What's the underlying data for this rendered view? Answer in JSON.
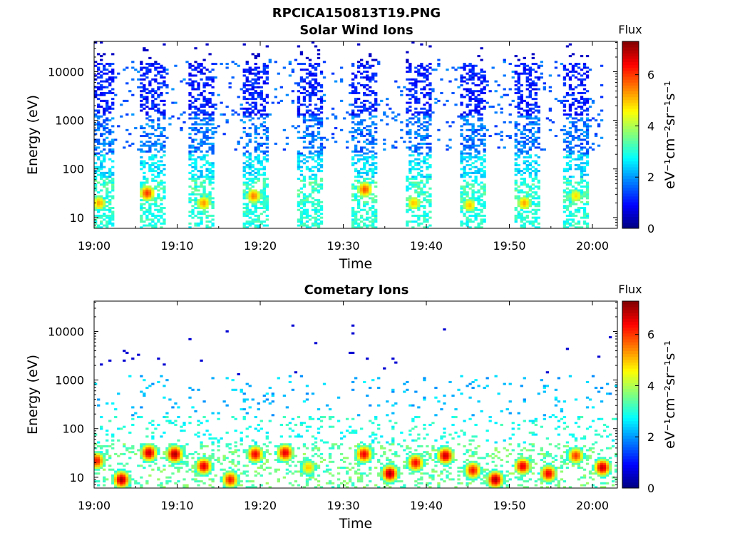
{
  "figure": {
    "title": "RPCICA150813T19.PNG"
  },
  "chart_data": [
    {
      "type": "heatmap",
      "title": "Solar Wind Ions",
      "xlabel": "Time",
      "ylabel": "Energy (eV)",
      "xlim": [
        "19:00",
        "20:03"
      ],
      "ylim": [
        6,
        42000
      ],
      "yscale": "log",
      "x_ticks": [
        "19:00",
        "19:10",
        "19:20",
        "19:30",
        "19:40",
        "19:50",
        "20:00"
      ],
      "y_ticks": [
        "10",
        "100",
        "1000",
        "10000"
      ],
      "colorbar": {
        "title": "Flux",
        "label": "eV⁻¹cm⁻²sr⁻¹s⁻¹",
        "range": [
          0,
          7.3
        ],
        "ticks": [
          "0",
          "2",
          "4",
          "6"
        ],
        "colormap": "jet"
      },
      "bursts_center_min": [
        1,
        7,
        13,
        19.5,
        26,
        32.5,
        39,
        45.5,
        52,
        58
      ],
      "hotspots": [
        {
          "t": 0.6,
          "e": 20,
          "flux": 5.2
        },
        {
          "t": 6.4,
          "e": 32,
          "flux": 6.0
        },
        {
          "t": 13.2,
          "e": 20,
          "flux": 5.3
        },
        {
          "t": 19.2,
          "e": 28,
          "flux": 5.5
        },
        {
          "t": 32.6,
          "e": 38,
          "flux": 5.8
        },
        {
          "t": 38.5,
          "e": 20,
          "flux": 5.0
        },
        {
          "t": 45.2,
          "e": 18,
          "flux": 5.0
        },
        {
          "t": 51.8,
          "e": 20,
          "flux": 5.2
        },
        {
          "t": 58.0,
          "e": 28,
          "flux": 4.8
        }
      ],
      "grid": false
    },
    {
      "type": "heatmap",
      "title": "Cometary Ions",
      "xlabel": "Time",
      "ylabel": "Energy (eV)",
      "xlim": [
        "19:00",
        "20:03"
      ],
      "ylim": [
        6,
        42000
      ],
      "yscale": "log",
      "x_ticks": [
        "19:00",
        "19:10",
        "19:20",
        "19:30",
        "19:40",
        "19:50",
        "20:00"
      ],
      "y_ticks": [
        "10",
        "100",
        "1000",
        "10000"
      ],
      "colorbar": {
        "title": "Flux",
        "label": "eV⁻¹cm⁻²sr⁻¹s⁻¹",
        "range": [
          0,
          7.3
        ],
        "ticks": [
          "0",
          "2",
          "4",
          "6"
        ],
        "colormap": "jet"
      },
      "hotspots": [
        {
          "t": 0.3,
          "e": 22,
          "flux": 6.3
        },
        {
          "t": 3.3,
          "e": 9,
          "flux": 7.0
        },
        {
          "t": 6.6,
          "e": 32,
          "flux": 6.8
        },
        {
          "t": 9.7,
          "e": 30,
          "flux": 7.0
        },
        {
          "t": 13.2,
          "e": 17,
          "flux": 6.6
        },
        {
          "t": 16.4,
          "e": 9,
          "flux": 6.3
        },
        {
          "t": 19.4,
          "e": 30,
          "flux": 6.5
        },
        {
          "t": 23.0,
          "e": 32,
          "flux": 6.6
        },
        {
          "t": 25.8,
          "e": 16,
          "flux": 5.0
        },
        {
          "t": 32.5,
          "e": 30,
          "flux": 6.5
        },
        {
          "t": 35.6,
          "e": 12,
          "flux": 7.0
        },
        {
          "t": 38.7,
          "e": 20,
          "flux": 6.4
        },
        {
          "t": 42.3,
          "e": 28,
          "flux": 6.8
        },
        {
          "t": 45.6,
          "e": 14,
          "flux": 6.3
        },
        {
          "t": 48.3,
          "e": 9,
          "flux": 7.0
        },
        {
          "t": 51.6,
          "e": 17,
          "flux": 6.6
        },
        {
          "t": 54.7,
          "e": 12,
          "flux": 6.5
        },
        {
          "t": 58.0,
          "e": 28,
          "flux": 6.0
        },
        {
          "t": 61.2,
          "e": 16,
          "flux": 6.8
        }
      ],
      "grid": false
    }
  ]
}
